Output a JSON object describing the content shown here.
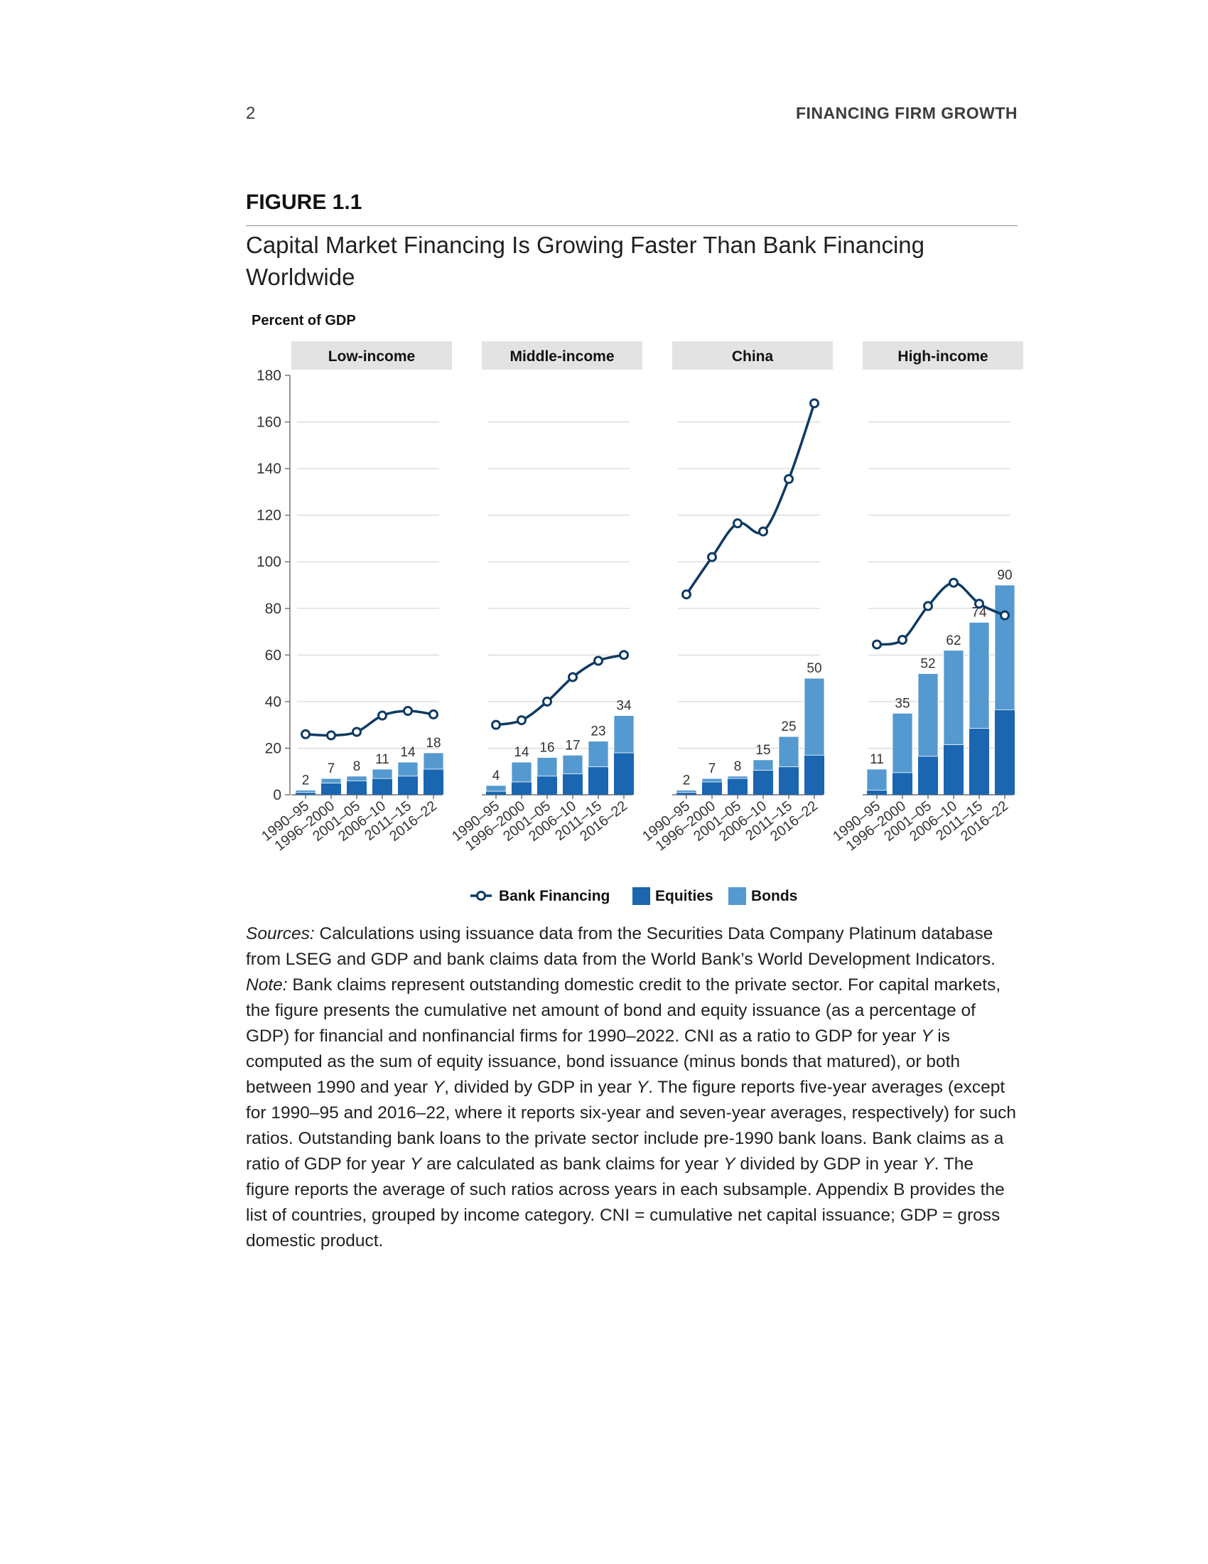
{
  "header": {
    "page_number": "2",
    "running_title": "FINANCING FIRM GROWTH"
  },
  "figure": {
    "label": "FIGURE 1.1",
    "title": "Capital Market Financing Is Growing Faster Than Bank Financing Worldwide"
  },
  "colors": {
    "bank": "#0d3a63",
    "equities": "#1a66b0",
    "bonds": "#5499cf",
    "panel_header": "#e3e3e3",
    "grid": "#cfcfcf"
  },
  "chart_data": {
    "type": "bar",
    "ylabel": "Percent of GDP",
    "ylim": [
      0,
      180
    ],
    "yticks": [
      0,
      20,
      40,
      60,
      80,
      100,
      120,
      140,
      160,
      180
    ],
    "categories": [
      "1990–95",
      "1996–2000",
      "2001–05",
      "2006–10",
      "2011–15",
      "2016–22"
    ],
    "legend": [
      "Bank Financing",
      "Equities",
      "Bonds"
    ],
    "panels": [
      {
        "name": "Low-income",
        "bank_financing": [
          26,
          25.5,
          27,
          34,
          36,
          34.5
        ],
        "equities": [
          1,
          5,
          6,
          7,
          8,
          11
        ],
        "bonds": [
          1,
          2,
          2,
          4,
          6,
          7
        ],
        "total_labels": [
          "2",
          "7",
          "8",
          "11",
          "14",
          "18"
        ]
      },
      {
        "name": "Middle-income",
        "bank_financing": [
          30,
          32,
          40,
          50.5,
          57.5,
          60
        ],
        "equities": [
          1.5,
          5.5,
          8,
          9,
          12,
          18
        ],
        "bonds": [
          2.5,
          8.5,
          8,
          8,
          11,
          16
        ],
        "total_labels": [
          "4",
          "14",
          "16",
          "17",
          "23",
          "34"
        ]
      },
      {
        "name": "China",
        "bank_financing": [
          86,
          102,
          116.5,
          113,
          135.5,
          168
        ],
        "equities": [
          1,
          5.5,
          7,
          10.5,
          12,
          17
        ],
        "bonds": [
          1,
          1.5,
          1,
          4.5,
          13,
          33
        ],
        "total_labels": [
          "2",
          "7",
          "8",
          "15",
          "25",
          "50"
        ]
      },
      {
        "name": "High-income",
        "bank_financing": [
          64.5,
          66.5,
          81,
          91,
          82,
          77
        ],
        "equities": [
          2,
          9.5,
          16.5,
          21.5,
          28.5,
          36.5
        ],
        "bonds": [
          9,
          25.5,
          35.5,
          40.5,
          45.5,
          53.5
        ],
        "total_labels": [
          "11",
          "35",
          "52",
          "62",
          "74",
          "90"
        ]
      }
    ]
  },
  "notes": {
    "sources_label": "Sources:",
    "sources_text": " Calculations using issuance data from the Securities Data Company Platinum database from LSEG and GDP and bank claims data from the World Bank’s World Development Indicators.",
    "note_label": "Note:",
    "note_text_1": " Bank claims represent outstanding domestic credit to the private sector. For capital markets, the figure presents the cumulative net amount of bond and equity issuance (as a percentage of GDP) for financial and nonfinancial firms for 1990–2022. CNI as a ratio to GDP for year ",
    "note_y1": "Y",
    "note_text_2": " is computed as the sum of equity issuance, bond issuance (minus bonds that matured), or both between 1990 and year ",
    "note_y2": "Y",
    "note_text_3": ", divided by GDP in year ",
    "note_y3": "Y",
    "note_text_4": ". The figure reports five-year averages (except for 1990–95 and 2016–22, where it reports six-year and seven-year averages, respectively) for such ratios. Outstanding bank loans to the private sector include pre-1990 bank loans. Bank claims as a ratio of GDP for year ",
    "note_y4": "Y",
    "note_text_5": " are calculated as bank claims for year ",
    "note_y5": "Y",
    "note_text_6": " divided by GDP in year ",
    "note_y6": "Y",
    "note_text_7": ". The figure reports the average of such ratios across years in each subsample. Appendix B provides the list of countries, grouped by income category. CNI = cumulative net capital issuance; GDP = gross domestic product."
  }
}
